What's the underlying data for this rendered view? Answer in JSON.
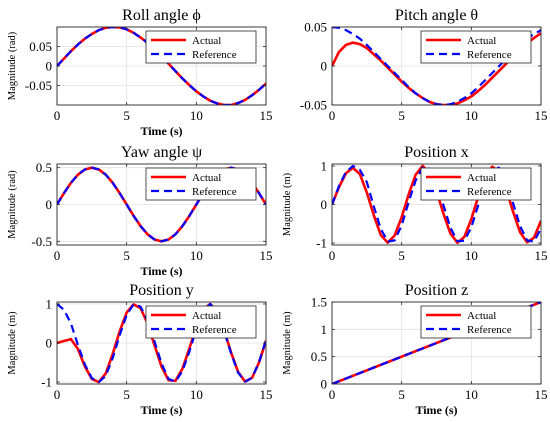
{
  "colors": {
    "actual": "#ff0000",
    "reference": "#0000ff",
    "axis": "#262626"
  },
  "chart_data": [
    {
      "type": "line",
      "title": "Roll angle ϕ",
      "xlabel": "Time (s)",
      "ylabel": "Magnitude (rad)",
      "xlim": [
        0,
        15
      ],
      "ylim": [
        -0.1,
        0.1
      ],
      "xticks": [
        0,
        5,
        10,
        15
      ],
      "yticks": [
        -0.05,
        0,
        0.05
      ],
      "ytick_labels": [
        "-0.05",
        "0",
        "0.05"
      ],
      "grid": true,
      "legend": "top-right",
      "x": [
        0,
        0.5,
        1,
        1.5,
        2,
        2.5,
        3,
        3.5,
        4,
        4.5,
        5,
        5.5,
        6,
        6.5,
        7,
        7.5,
        8,
        8.5,
        9,
        9.5,
        10,
        10.5,
        11,
        11.5,
        12,
        12.5,
        13,
        13.5,
        14,
        14.5,
        15
      ],
      "series": [
        {
          "name": "Actual",
          "values": [
            0.0,
            0.019,
            0.038,
            0.055,
            0.07,
            0.082,
            0.092,
            0.098,
            0.1,
            0.099,
            0.094,
            0.085,
            0.073,
            0.059,
            0.042,
            0.025,
            0.006,
            -0.013,
            -0.032,
            -0.049,
            -0.065,
            -0.078,
            -0.089,
            -0.096,
            -0.1,
            -0.1,
            -0.095,
            -0.087,
            -0.075,
            -0.061,
            -0.045
          ]
        },
        {
          "name": "Reference",
          "values": [
            0.0,
            0.019,
            0.038,
            0.055,
            0.07,
            0.082,
            0.092,
            0.098,
            0.1,
            0.099,
            0.094,
            0.085,
            0.073,
            0.059,
            0.042,
            0.025,
            0.006,
            -0.013,
            -0.032,
            -0.049,
            -0.065,
            -0.078,
            -0.089,
            -0.096,
            -0.1,
            -0.1,
            -0.095,
            -0.087,
            -0.075,
            -0.061,
            -0.045
          ]
        }
      ]
    },
    {
      "type": "line",
      "title": "Pitch angle θ",
      "xlabel": "",
      "ylabel": "",
      "xlim": [
        0,
        15
      ],
      "ylim": [
        -0.05,
        0.05
      ],
      "xticks": [
        0,
        5,
        10,
        15
      ],
      "yticks": [
        -0.05,
        0,
        0.05
      ],
      "ytick_labels": [
        "-0.05",
        "0",
        "0.05"
      ],
      "grid": true,
      "legend": "top-right",
      "x": [
        0,
        0.5,
        1,
        1.5,
        2,
        2.5,
        3,
        3.5,
        4,
        4.5,
        5,
        5.5,
        6,
        6.5,
        7,
        7.5,
        8,
        8.5,
        9,
        9.5,
        10,
        10.5,
        11,
        11.5,
        12,
        12.5,
        13,
        13.5,
        14,
        14.5,
        15
      ],
      "series": [
        {
          "name": "Actual",
          "values": [
            0.0,
            0.018,
            0.027,
            0.03,
            0.028,
            0.023,
            0.015,
            0.007,
            -0.002,
            -0.011,
            -0.02,
            -0.028,
            -0.035,
            -0.041,
            -0.046,
            -0.049,
            -0.05,
            -0.05,
            -0.048,
            -0.044,
            -0.039,
            -0.032,
            -0.024,
            -0.015,
            -0.006,
            0.003,
            0.012,
            0.021,
            0.029,
            0.036,
            0.042
          ]
        },
        {
          "name": "Reference",
          "values": [
            0.05,
            0.049,
            0.046,
            0.041,
            0.035,
            0.027,
            0.018,
            0.009,
            -0.0,
            -0.009,
            -0.018,
            -0.027,
            -0.035,
            -0.041,
            -0.046,
            -0.049,
            -0.05,
            -0.049,
            -0.046,
            -0.041,
            -0.035,
            -0.027,
            -0.018,
            -0.009,
            -0.0,
            0.009,
            0.018,
            0.027,
            0.035,
            0.041,
            0.046
          ]
        }
      ]
    },
    {
      "type": "line",
      "title": "Yaw angle ψ",
      "xlabel": "Time (s)",
      "ylabel": "Magnitude (rad)",
      "xlim": [
        0,
        15
      ],
      "ylim": [
        -0.55,
        0.55
      ],
      "xticks": [
        0,
        5,
        10,
        15
      ],
      "yticks": [
        -0.5,
        0,
        0.5
      ],
      "ytick_labels": [
        "-0.5",
        "0",
        "0.5"
      ],
      "grid": true,
      "legend": "top-right",
      "x": [
        0,
        0.5,
        1,
        1.5,
        2,
        2.5,
        3,
        3.5,
        4,
        4.5,
        5,
        5.5,
        6,
        6.5,
        7,
        7.5,
        8,
        8.5,
        9,
        9.5,
        10,
        10.5,
        11,
        11.5,
        12,
        12.5,
        13,
        13.5,
        14,
        14.5,
        15
      ],
      "series": [
        {
          "name": "Actual",
          "values": [
            0.0,
            0.154,
            0.294,
            0.405,
            0.476,
            0.5,
            0.476,
            0.405,
            0.294,
            0.154,
            0.0,
            -0.154,
            -0.294,
            -0.405,
            -0.476,
            -0.5,
            -0.476,
            -0.405,
            -0.294,
            -0.154,
            0.0,
            0.154,
            0.294,
            0.405,
            0.476,
            0.5,
            0.476,
            0.405,
            0.294,
            0.154,
            0.0
          ]
        },
        {
          "name": "Reference",
          "values": [
            0.0,
            0.154,
            0.294,
            0.405,
            0.476,
            0.5,
            0.476,
            0.405,
            0.294,
            0.154,
            0.0,
            -0.154,
            -0.294,
            -0.405,
            -0.476,
            -0.5,
            -0.476,
            -0.405,
            -0.294,
            -0.154,
            0.0,
            0.154,
            0.294,
            0.405,
            0.476,
            0.5,
            0.476,
            0.405,
            0.294,
            0.154,
            0.0
          ]
        }
      ]
    },
    {
      "type": "line",
      "title": "Position x",
      "xlabel": "",
      "ylabel": "Magnitude (m)",
      "xlim": [
        0,
        15
      ],
      "ylim": [
        -1.05,
        1.05
      ],
      "xticks": [
        0,
        5,
        10,
        15
      ],
      "yticks": [
        -1,
        0,
        1
      ],
      "ytick_labels": [
        "-1",
        "0",
        "1"
      ],
      "grid": true,
      "legend": "top-right",
      "x": [
        0,
        0.5,
        1,
        1.5,
        2,
        2.5,
        3,
        3.5,
        4,
        4.5,
        5,
        5.5,
        6,
        6.5,
        7,
        7.5,
        8,
        8.5,
        9,
        9.5,
        10,
        10.5,
        11,
        11.5,
        12,
        12.5,
        13,
        13.5,
        14,
        14.5,
        15
      ],
      "series": [
        {
          "name": "Actual",
          "values": [
            0.0,
            0.45,
            0.81,
            0.95,
            0.79,
            0.31,
            -0.28,
            -0.79,
            -0.99,
            -0.8,
            -0.33,
            0.26,
            0.77,
            1.0,
            0.82,
            0.35,
            -0.24,
            -0.75,
            -0.99,
            -0.84,
            -0.38,
            0.21,
            0.73,
            0.98,
            0.85,
            0.4,
            -0.19,
            -0.72,
            -0.98,
            -0.86,
            -0.42
          ]
        },
        {
          "name": "Reference",
          "values": [
            0.0,
            0.48,
            0.84,
            1.0,
            0.9,
            0.58,
            -0.05,
            -0.63,
            -0.96,
            -0.93,
            -0.54,
            0.06,
            0.62,
            0.96,
            0.93,
            0.57,
            -0.02,
            -0.6,
            -0.95,
            -0.94,
            -0.59,
            -0.01,
            0.58,
            0.94,
            0.95,
            0.6,
            0.03,
            -0.56,
            -0.93,
            -0.96,
            -0.62
          ]
        }
      ]
    },
    {
      "type": "line",
      "title": "Position y",
      "xlabel": "Time (s)",
      "ylabel": "Magnitude (m)",
      "xlim": [
        0,
        15
      ],
      "ylim": [
        -1.05,
        1.05
      ],
      "xticks": [
        0,
        5,
        10,
        15
      ],
      "yticks": [
        -1,
        0,
        1
      ],
      "ytick_labels": [
        "-1",
        "0",
        "1"
      ],
      "grid": true,
      "legend": "top-right",
      "x": [
        0,
        0.5,
        1,
        1.5,
        2,
        2.5,
        3,
        3.5,
        4,
        4.5,
        5,
        5.5,
        6,
        6.5,
        7,
        7.5,
        8,
        8.5,
        9,
        9.5,
        10,
        10.5,
        11,
        11.5,
        12,
        12.5,
        13,
        13.5,
        14,
        14.5,
        15
      ],
      "series": [
        {
          "name": "Actual",
          "values": [
            0.0,
            0.05,
            0.1,
            -0.15,
            -0.6,
            -0.92,
            -1.0,
            -0.78,
            -0.28,
            0.3,
            0.78,
            0.99,
            0.89,
            0.5,
            -0.06,
            -0.6,
            -0.95,
            -0.97,
            -0.66,
            -0.14,
            0.42,
            0.86,
            1.0,
            0.78,
            0.32,
            -0.25,
            -0.74,
            -0.99,
            -0.89,
            -0.5,
            0.06
          ]
        },
        {
          "name": "Reference",
          "values": [
            1.0,
            0.85,
            0.5,
            -0.05,
            -0.55,
            -0.9,
            -1.0,
            -0.84,
            -0.38,
            0.2,
            0.72,
            0.99,
            0.93,
            0.58,
            0.04,
            -0.52,
            -0.92,
            -0.99,
            -0.72,
            -0.22,
            0.36,
            0.84,
            1.0,
            0.8,
            0.3,
            -0.27,
            -0.76,
            -0.99,
            -0.89,
            -0.49,
            0.08
          ]
        }
      ]
    },
    {
      "type": "line",
      "title": "Position z",
      "xlabel": "Time (s)",
      "ylabel": "Magnitude (m)",
      "xlim": [
        0,
        15
      ],
      "ylim": [
        0,
        1.5
      ],
      "xticks": [
        0,
        5,
        10,
        15
      ],
      "yticks": [
        0,
        0.5,
        1,
        1.5
      ],
      "ytick_labels": [
        "0",
        "0.5",
        "1",
        "1.5"
      ],
      "grid": true,
      "legend": "top-right",
      "x": [
        0,
        15
      ],
      "series": [
        {
          "name": "Actual",
          "values": [
            0.0,
            1.5
          ]
        },
        {
          "name": "Reference",
          "values": [
            0.0,
            1.5
          ]
        }
      ]
    }
  ]
}
